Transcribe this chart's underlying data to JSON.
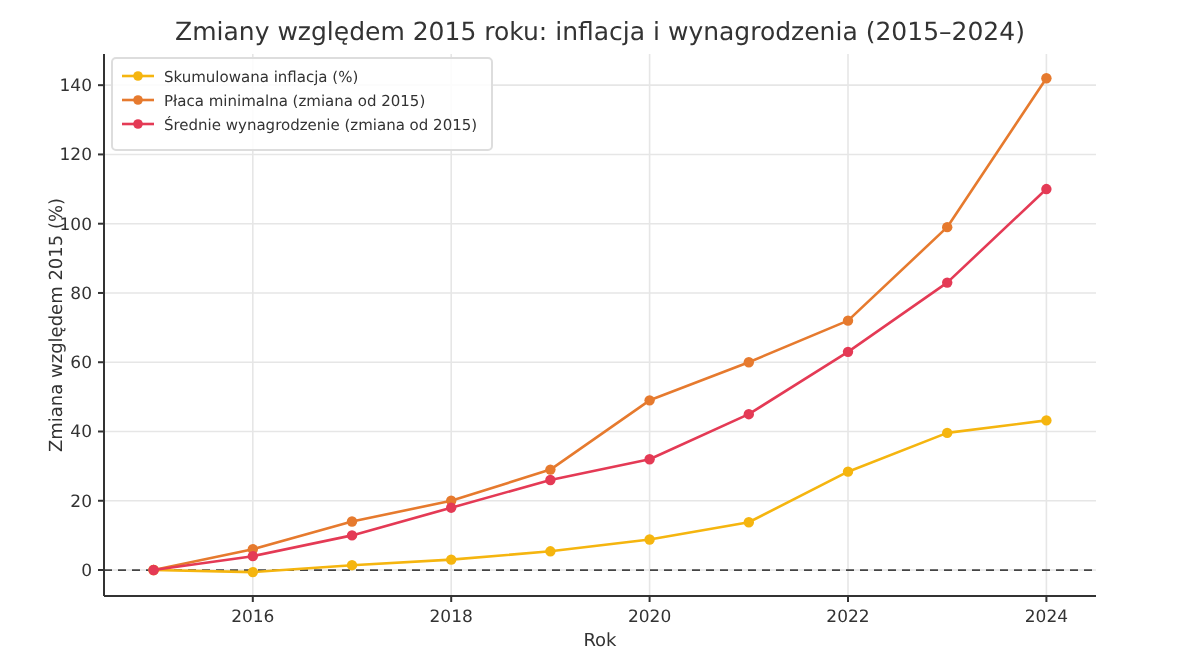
{
  "chart_data": {
    "type": "line",
    "title": "Zmiany względem 2015 roku: inflacja i wynagrodzenia (2015–2024)",
    "xlabel": "Rok",
    "ylabel": "Zmiana względem 2015 (%)",
    "x": [
      2015,
      2016,
      2017,
      2018,
      2019,
      2020,
      2021,
      2022,
      2023,
      2024
    ],
    "series": [
      {
        "name": "Skumulowana inflacja (%)",
        "color": "#f5b50f",
        "values": [
          0,
          -0.6,
          1.4,
          3.0,
          5.4,
          8.8,
          13.8,
          28.4,
          39.6,
          43.2
        ]
      },
      {
        "name": "Płaca minimalna (zmiana od 2015)",
        "color": "#e67a2e",
        "values": [
          0,
          6,
          14,
          20,
          29,
          49,
          60,
          72,
          99,
          142
        ]
      },
      {
        "name": "Średnie wynagrodzenie (zmiana od 2015)",
        "color": "#e43a55",
        "values": [
          0,
          4,
          10,
          18,
          26,
          32,
          45,
          63,
          83,
          110
        ]
      }
    ],
    "xlim": [
      2014.5,
      2024.5
    ],
    "xticks": [
      2016,
      2018,
      2020,
      2022,
      2024
    ],
    "ylim": [
      -7.5,
      149
    ],
    "yticks": [
      0,
      20,
      40,
      60,
      80,
      100,
      120,
      140
    ],
    "ref_lines": [
      {
        "axis": "y",
        "value": 0,
        "color": "#444444",
        "line_style": "dashed"
      }
    ],
    "grid": true,
    "legend": "top left",
    "marker": "circle",
    "line_style": "solid"
  }
}
